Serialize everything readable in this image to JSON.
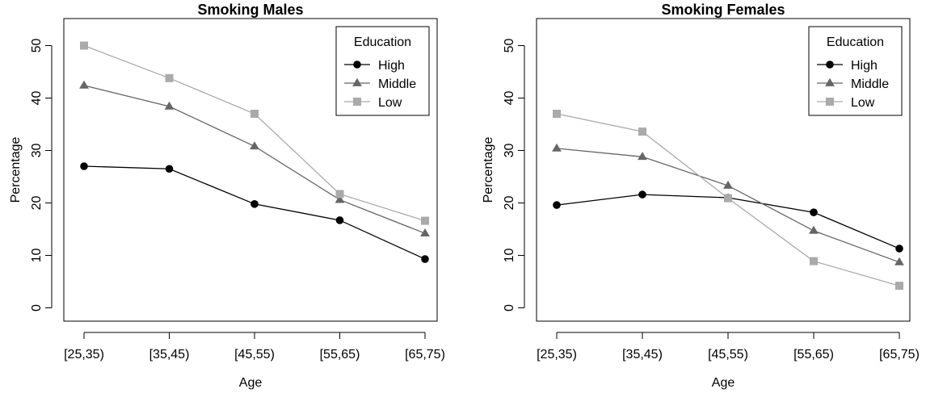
{
  "chart_data": [
    {
      "type": "line",
      "title": "Smoking Males",
      "xlabel": "Age",
      "ylabel": "Percentage",
      "categories": [
        "[25,35)",
        "[35,45)",
        "[45,55)",
        "[55,65)",
        "[65,75)"
      ],
      "ylim": [
        0,
        50
      ],
      "yticks": [
        0,
        10,
        20,
        30,
        40,
        50
      ],
      "grid": false,
      "legend": {
        "title": "Education",
        "position": "top-right"
      },
      "series": [
        {
          "name": "High",
          "color": "#000000",
          "marker": "circle",
          "values": [
            27.0,
            26.5,
            19.8,
            16.7,
            9.3
          ]
        },
        {
          "name": "Middle",
          "color": "#666666",
          "marker": "triangle",
          "values": [
            42.4,
            38.4,
            30.8,
            20.6,
            14.2
          ]
        },
        {
          "name": "Low",
          "color": "#aaaaaa",
          "marker": "square",
          "values": [
            50.0,
            43.8,
            37.0,
            21.7,
            16.6
          ]
        }
      ]
    },
    {
      "type": "line",
      "title": "Smoking Females",
      "xlabel": "Age",
      "ylabel": "Percentage",
      "categories": [
        "[25,35)",
        "[35,45)",
        "[45,55)",
        "[55,65)",
        "[65,75)"
      ],
      "ylim": [
        0,
        50
      ],
      "yticks": [
        0,
        10,
        20,
        30,
        40,
        50
      ],
      "grid": false,
      "legend": {
        "title": "Education",
        "position": "top-right"
      },
      "series": [
        {
          "name": "High",
          "color": "#000000",
          "marker": "circle",
          "values": [
            19.6,
            21.6,
            21.0,
            18.2,
            11.3
          ]
        },
        {
          "name": "Middle",
          "color": "#666666",
          "marker": "triangle",
          "values": [
            30.4,
            28.8,
            23.3,
            14.7,
            8.7
          ]
        },
        {
          "name": "Low",
          "color": "#aaaaaa",
          "marker": "square",
          "values": [
            37.0,
            33.6,
            20.9,
            8.9,
            4.2
          ]
        }
      ]
    }
  ]
}
